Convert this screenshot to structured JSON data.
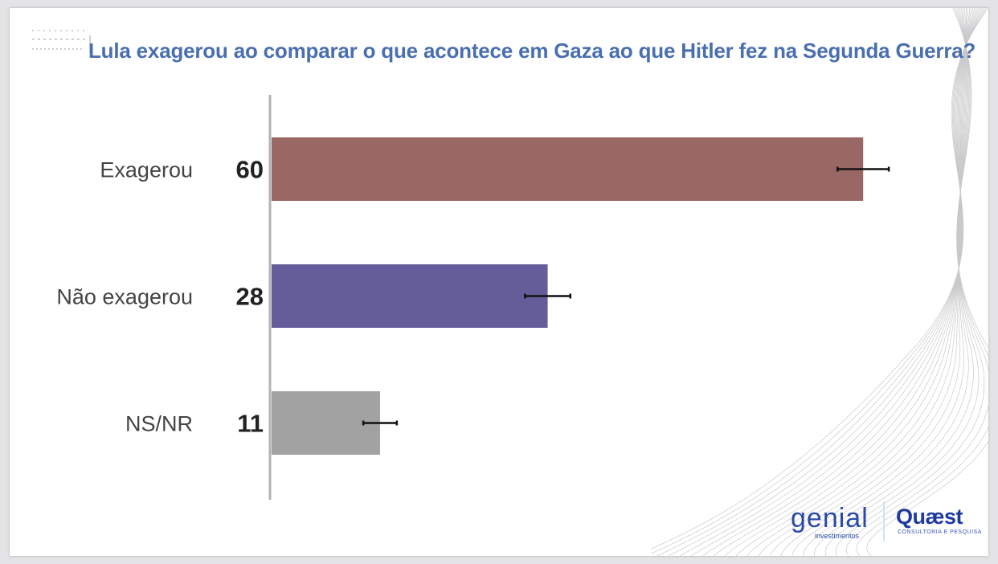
{
  "title": "Lula exagerou ao comparar o que acontece em Gaza ao que Hitler fez na Segunda Guerra?",
  "chart_data": {
    "type": "bar",
    "orientation": "horizontal",
    "title": "Lula exagerou ao comparar o que acontece em Gaza ao que Hitler fez na Segunda Guerra?",
    "categories": [
      "Exagerou",
      "Não exagerou",
      "NS/NR"
    ],
    "values": [
      60,
      28,
      11
    ],
    "error_margin": [
      2.6,
      2.3,
      1.7
    ],
    "colors": [
      "#9a6864",
      "#635d99",
      "#a2a2a2"
    ],
    "xlim": [
      0,
      100
    ],
    "grid": false,
    "legend": "none"
  },
  "logos": {
    "genial_main": "genial",
    "genial_sub": "investimentos",
    "quaest_main": "Quæst",
    "quaest_sub": "CONSULTORIA E PESQUISA"
  },
  "colors": {
    "title": "#4a6fb0",
    "axis": "#b3b3b3",
    "brand_blue": "#2a4aa8"
  }
}
